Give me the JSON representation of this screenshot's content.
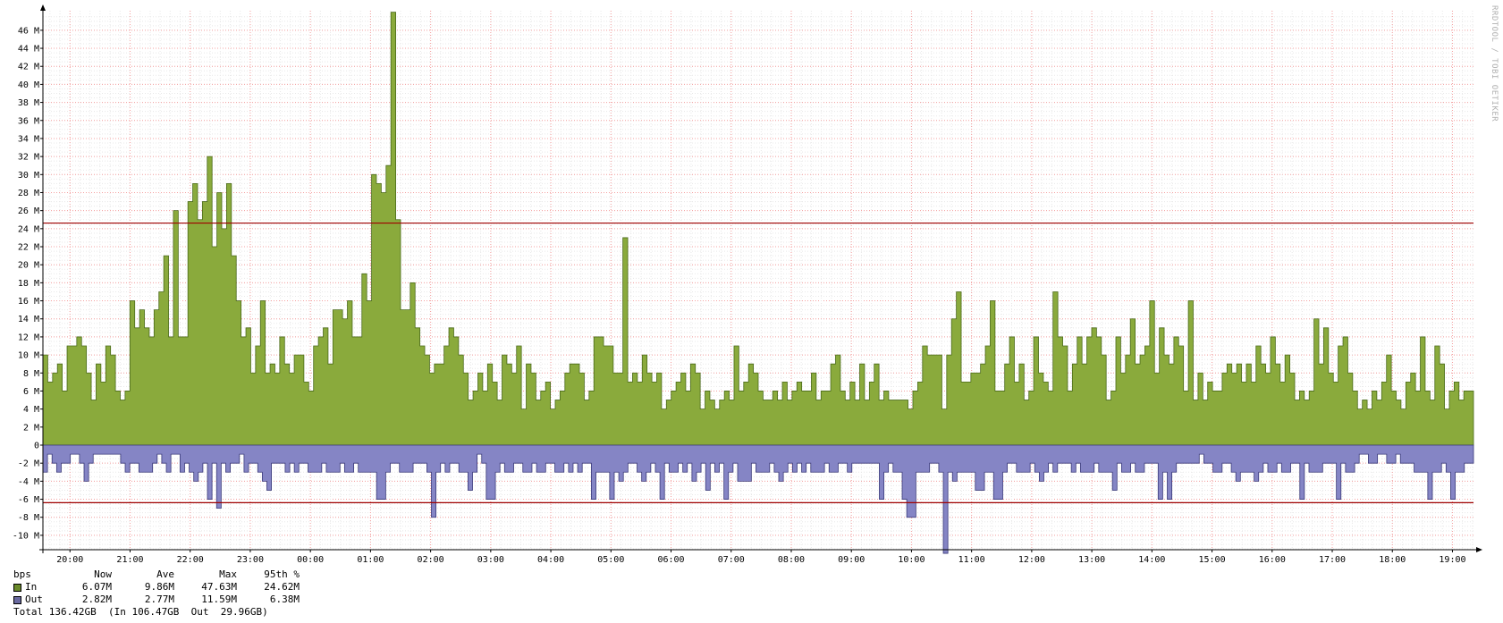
{
  "watermark": "RRDTOOL / TOBI OETIKER",
  "colors": {
    "in_fill": "#8aaa3c",
    "in_line": "#4a6a1a",
    "out_fill": "#8585c5",
    "out_line": "#3a3a7a",
    "grid_major": "#f5a0a0",
    "grid_minor": "#e8e8e8",
    "percentile_line": "#a00000"
  },
  "legend": {
    "unit": "bps",
    "headers": {
      "now": "Now",
      "ave": "Ave",
      "max": "Max",
      "p95": "95th %"
    },
    "rows": [
      {
        "label": "In",
        "now": "6.07M",
        "ave": "9.86M",
        "max": "47.63M",
        "p95": "24.62M",
        "color": "#6a8a2a"
      },
      {
        "label": "Out",
        "now": "2.82M",
        "ave": "2.77M",
        "max": "11.59M",
        "p95": "6.38M",
        "color": "#6a6aa0"
      }
    ],
    "total": "Total 136.42GB  (In 106.47GB  Out  29.96GB)"
  },
  "chart_data": {
    "type": "area",
    "x_tick_labels": [
      "20:00",
      "21:00",
      "22:00",
      "23:00",
      "00:00",
      "01:00",
      "02:00",
      "03:00",
      "04:00",
      "05:00",
      "06:00",
      "07:00",
      "08:00",
      "09:00",
      "10:00",
      "11:00",
      "12:00",
      "13:00",
      "14:00",
      "15:00",
      "16:00",
      "17:00",
      "18:00",
      "19:00"
    ],
    "y_tick_labels": [
      "46 M",
      "44 M",
      "42 M",
      "40 M",
      "38 M",
      "36 M",
      "34 M",
      "32 M",
      "30 M",
      "28 M",
      "26 M",
      "24 M",
      "22 M",
      "20 M",
      "18 M",
      "16 M",
      "14 M",
      "12 M",
      "10 M",
      "8 M",
      "6 M",
      "4 M",
      "2 M",
      "0",
      "-2 M",
      "-4 M",
      "-6 M",
      "-8 M",
      "-10 M"
    ],
    "y_ticks": [
      46,
      44,
      42,
      40,
      38,
      36,
      34,
      32,
      30,
      28,
      26,
      24,
      22,
      20,
      18,
      16,
      14,
      12,
      10,
      8,
      6,
      4,
      2,
      0,
      -2,
      -4,
      -6,
      -8,
      -10
    ],
    "ylim": [
      -11.6,
      47.6
    ],
    "x_range_hours": [
      19.55,
      43.35
    ],
    "percentile_lines": [
      24.62,
      -6.38
    ],
    "grid": true,
    "series": [
      {
        "name": "In",
        "values": [
          10,
          7,
          8,
          9,
          6,
          11,
          11,
          12,
          11,
          8,
          5,
          9,
          7,
          11,
          10,
          6,
          5,
          6,
          16,
          13,
          15,
          13,
          12,
          15,
          17,
          21,
          12,
          26,
          12,
          12,
          27,
          29,
          25,
          27,
          32,
          22,
          28,
          24,
          29,
          21,
          16,
          12,
          13,
          8,
          11,
          16,
          8,
          9,
          8,
          12,
          9,
          8,
          10,
          10,
          7,
          6,
          11,
          12,
          13,
          9,
          15,
          15,
          14,
          16,
          12,
          12,
          19,
          16,
          30,
          29,
          28,
          31,
          48,
          25,
          15,
          15,
          18,
          13,
          11,
          10,
          8,
          9,
          9,
          11,
          13,
          12,
          10,
          8,
          5,
          6,
          8,
          6,
          9,
          7,
          5,
          10,
          9,
          8,
          11,
          4,
          9,
          8,
          5,
          6,
          7,
          4,
          5,
          6,
          8,
          9,
          9,
          8,
          5,
          6,
          12,
          12,
          11,
          11,
          8,
          8,
          23,
          7,
          8,
          7,
          10,
          8,
          7,
          8,
          4,
          5,
          6,
          7,
          8,
          6,
          9,
          8,
          4,
          6,
          5,
          4,
          5,
          6,
          5,
          11,
          6,
          7,
          9,
          8,
          6,
          5,
          5,
          6,
          5,
          7,
          5,
          6,
          7,
          6,
          6,
          8,
          5,
          6,
          6,
          9,
          10,
          6,
          5,
          7,
          5,
          9,
          5,
          7,
          9,
          5,
          6,
          5,
          5,
          5,
          5,
          4,
          6,
          7,
          11,
          10,
          10,
          10,
          4,
          10,
          14,
          17,
          7,
          7,
          8,
          8,
          9,
          11,
          16,
          6,
          6,
          9,
          12,
          7,
          9,
          5,
          6,
          12,
          8,
          7,
          6,
          17,
          12,
          11,
          6,
          9,
          12,
          9,
          12,
          13,
          12,
          10,
          5,
          6,
          12,
          8,
          10,
          14,
          9,
          10,
          11,
          16,
          8,
          13,
          10,
          9,
          12,
          11,
          6,
          16,
          5,
          8,
          5,
          7,
          6,
          6,
          8,
          9,
          8,
          9,
          7,
          9,
          7,
          11,
          9,
          8,
          12,
          9,
          7,
          10,
          8,
          5,
          6,
          5,
          6,
          14,
          9,
          13,
          8,
          7,
          11,
          12,
          8,
          6,
          4,
          5,
          4,
          6,
          5,
          7,
          10,
          6,
          5,
          4,
          7,
          8,
          6,
          12,
          6,
          5,
          11,
          9,
          4,
          6,
          7,
          5,
          6,
          6
        ]
      },
      {
        "name": "Out",
        "values": [
          -3,
          -1,
          -2,
          -3,
          -2,
          -2,
          -1,
          -1,
          -2,
          -4,
          -2,
          -1,
          -1,
          -1,
          -1,
          -1,
          -1,
          -2,
          -3,
          -2,
          -2,
          -3,
          -3,
          -3,
          -2,
          -1,
          -2,
          -3,
          -1,
          -1,
          -3,
          -2,
          -3,
          -4,
          -3,
          -2,
          -6,
          -2,
          -7,
          -2,
          -3,
          -2,
          -2,
          -1,
          -3,
          -2,
          -2,
          -3,
          -4,
          -5,
          -2,
          -2,
          -2,
          -3,
          -2,
          -3,
          -2,
          -2,
          -3,
          -3,
          -3,
          -2,
          -3,
          -3,
          -3,
          -2,
          -3,
          -3,
          -2,
          -3,
          -3,
          -3,
          -3,
          -6,
          -6,
          -3,
          -2,
          -2,
          -3,
          -3,
          -3,
          -2,
          -2,
          -2,
          -3,
          -8,
          -3,
          -2,
          -3,
          -2,
          -2,
          -3,
          -3,
          -5,
          -3,
          -1,
          -2,
          -6,
          -6,
          -3,
          -2,
          -3,
          -3,
          -2,
          -2,
          -3,
          -3,
          -2,
          -3,
          -3,
          -2,
          -2,
          -3,
          -3,
          -2,
          -3,
          -2,
          -3,
          -2,
          -2,
          -6,
          -3,
          -3,
          -3,
          -6,
          -3,
          -4,
          -3,
          -2,
          -2,
          -3,
          -4,
          -3,
          -2,
          -3,
          -6,
          -2,
          -3,
          -3,
          -2,
          -3,
          -2,
          -4,
          -3,
          -2,
          -5,
          -2,
          -3,
          -2,
          -6,
          -3,
          -2,
          -4,
          -4,
          -4,
          -2,
          -3,
          -3,
          -3,
          -2,
          -3,
          -4,
          -3,
          -2,
          -3,
          -2,
          -3,
          -2,
          -3,
          -3,
          -3,
          -2,
          -3,
          -3,
          -2,
          -2,
          -3,
          -2,
          -2,
          -2,
          -2,
          -2,
          -2,
          -6,
          -3,
          -2,
          -3,
          -3,
          -6,
          -8,
          -8,
          -3,
          -3,
          -3,
          -2,
          -2,
          -3,
          -12,
          -3,
          -4,
          -3,
          -3,
          -3,
          -3,
          -5,
          -5,
          -3,
          -3,
          -6,
          -6,
          -3,
          -2,
          -2,
          -3,
          -3,
          -3,
          -2,
          -3,
          -4,
          -3,
          -2,
          -3,
          -2,
          -2,
          -2,
          -3,
          -2,
          -3,
          -3,
          -3,
          -2,
          -3,
          -3,
          -3,
          -5,
          -2,
          -3,
          -3,
          -2,
          -3,
          -3,
          -2,
          -2,
          -2,
          -6,
          -3,
          -6,
          -3,
          -2,
          -2,
          -2,
          -2,
          -2,
          -1,
          -2,
          -2,
          -3,
          -3,
          -2,
          -2,
          -3,
          -4,
          -3,
          -3,
          -3,
          -4,
          -3,
          -2,
          -3,
          -3,
          -2,
          -3,
          -3,
          -2,
          -2,
          -6,
          -2,
          -3,
          -3,
          -3,
          -2,
          -2,
          -2,
          -6,
          -2,
          -3,
          -3,
          -2,
          -1,
          -1,
          -2,
          -2,
          -1,
          -1,
          -2,
          -2,
          -1,
          -2,
          -2,
          -2,
          -3,
          -3,
          -3,
          -6,
          -3,
          -3,
          -2,
          -3,
          -6,
          -3,
          -3,
          -2,
          -2
        ]
      }
    ]
  }
}
